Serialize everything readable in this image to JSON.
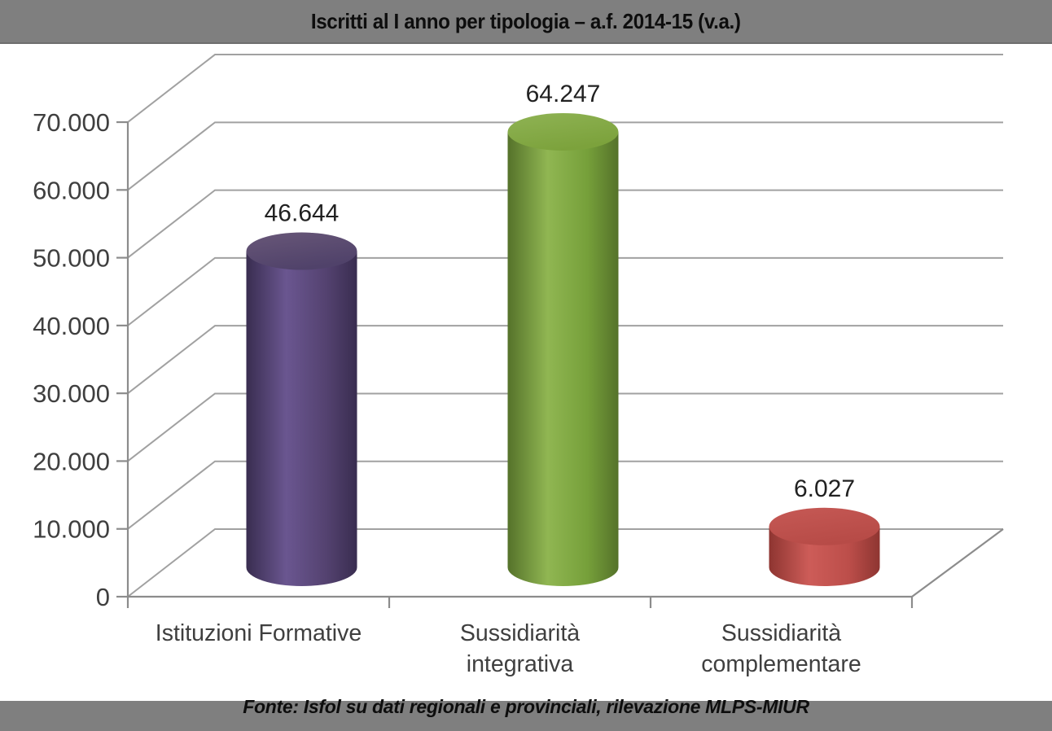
{
  "colors": {
    "band": "#7F7F7F",
    "band_edge": "#6E6E6E",
    "background": "#FFFFFF",
    "gridline": "#A1A1A1",
    "axis": "#8C8C8C",
    "tick_label": "#3F3F3F",
    "data_label": "#212121"
  },
  "chart_data": {
    "type": "bar",
    "style": "3d-cylinder",
    "title": "Iscritti al I anno per tipologia – a.f. 2014-15 (v.a.)",
    "source_note": "Fonte: Isfol su dati regionali e provinciali, rilevazione MLPS-MIUR",
    "categories": [
      "Istituzioni Formative",
      "Sussidiarità integrativa",
      "Sussidiarità complementare"
    ],
    "category_label_lines": [
      [
        "Istituzioni Formative"
      ],
      [
        "Sussidiarità",
        "integrativa"
      ],
      [
        "Sussidiarità",
        "complementare"
      ]
    ],
    "values": [
      46644,
      64247,
      6027
    ],
    "value_labels": [
      "46.644",
      "64.247",
      "6.027"
    ],
    "ylim": [
      0,
      70000
    ],
    "ytick_step": 10000,
    "ytick_labels": [
      "0",
      "10.000",
      "20.000",
      "30.000",
      "40.000",
      "50.000",
      "60.000",
      "70.000"
    ],
    "grid": true,
    "legend": false,
    "bar_colors": [
      {
        "name": "purple",
        "dark": "#392D50",
        "mid": "#544270",
        "light": "#6A5690",
        "top": "#50426A",
        "top_light": "#685778"
      },
      {
        "name": "green",
        "dark": "#55722A",
        "mid": "#76A03A",
        "light": "#90B652",
        "top": "#7CA23C",
        "top_light": "#8FB354"
      },
      {
        "name": "red",
        "dark": "#8E3531",
        "mid": "#BC4E4A",
        "light": "#CD5C58",
        "top": "#B74B47",
        "top_light": "#C65955"
      }
    ]
  }
}
